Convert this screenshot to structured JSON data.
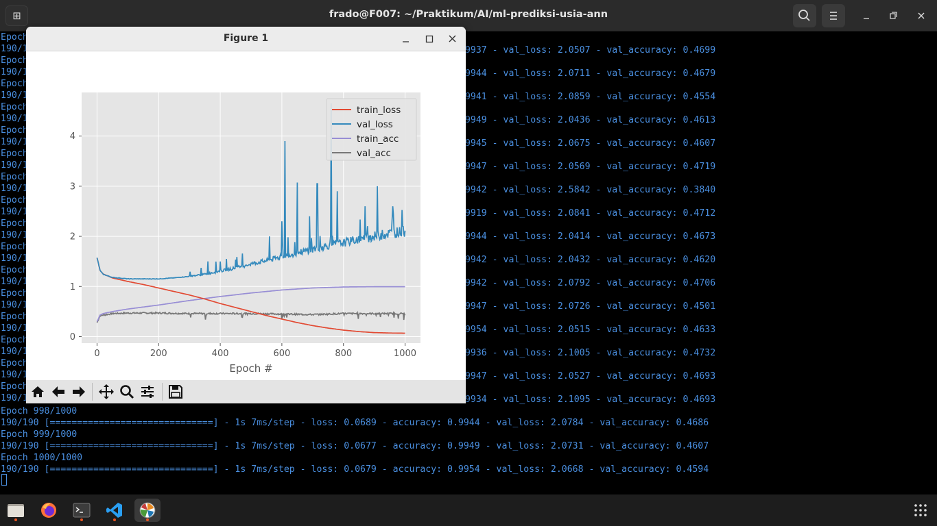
{
  "terminal": {
    "title": "frado@F007: ~/Praktikum/AI/ml-prediksi-usia-ann",
    "left_fragments": [
      "Epoch",
      "190/1",
      "Epoch",
      "190/1",
      "Epoch",
      "190/1",
      "Epoch",
      "190/1",
      "Epoch",
      "190/1",
      "Epoch",
      "190/1",
      "Epoch",
      "190/1",
      "Epoch",
      "190/1",
      "Epoch",
      "190/1",
      "Epoch",
      "190/1",
      "Epoch",
      "190/1",
      "Epoch",
      "190/1",
      "Epoch",
      "190/1",
      "Epoch",
      "190/1",
      "Epoch",
      "190/1",
      "Epoch",
      "190/1"
    ],
    "right_fragments": [
      ".9937 - val_loss: 2.0507 - val_accuracy: 0.4699",
      ".9944 - val_loss: 2.0711 - val_accuracy: 0.4679",
      ".9941 - val_loss: 2.0859 - val_accuracy: 0.4554",
      ".9949 - val_loss: 2.0436 - val_accuracy: 0.4613",
      ".9945 - val_loss: 2.0675 - val_accuracy: 0.4607",
      ".9947 - val_loss: 2.0569 - val_accuracy: 0.4719",
      ".9942 - val_loss: 2.5842 - val_accuracy: 0.3840",
      ".9919 - val_loss: 2.0841 - val_accuracy: 0.4712",
      ".9944 - val_loss: 2.0414 - val_accuracy: 0.4673",
      ".9942 - val_loss: 2.0432 - val_accuracy: 0.4620",
      ".9942 - val_loss: 2.0792 - val_accuracy: 0.4706",
      ".9947 - val_loss: 2.0726 - val_accuracy: 0.4501",
      ".9954 - val_loss: 2.0515 - val_accuracy: 0.4633",
      ".9936 - val_loss: 2.1005 - val_accuracy: 0.4732",
      ".9947 - val_loss: 2.0527 - val_accuracy: 0.4693",
      ".9934 - val_loss: 2.1095 - val_accuracy: 0.4693"
    ],
    "full_lines": [
      "Epoch 998/1000",
      "190/190 [==============================] - 1s 7ms/step - loss: 0.0689 - accuracy: 0.9944 - val_loss: 2.0784 - val_accuracy: 0.4686",
      "Epoch 999/1000",
      "190/190 [==============================] - 1s 7ms/step - loss: 0.0677 - accuracy: 0.9949 - val_loss: 2.0731 - val_accuracy: 0.4607",
      "Epoch 1000/1000",
      "190/190 [==============================] - 1s 7ms/step - loss: 0.0679 - accuracy: 0.9954 - val_loss: 2.0668 - val_accuracy: 0.4594"
    ]
  },
  "figure": {
    "title": "Figure 1"
  },
  "chart_data": {
    "type": "line",
    "title": "",
    "xlabel": "Epoch #",
    "ylabel": "",
    "xlim": [
      -50,
      1050
    ],
    "ylim": [
      -0.13,
      4.87
    ],
    "xticks": [
      0,
      200,
      400,
      600,
      800,
      1000
    ],
    "yticks": [
      0,
      1,
      2,
      3,
      4
    ],
    "grid": true,
    "legend_position": "top-right",
    "series": [
      {
        "name": "train_loss",
        "color": "#e24a33",
        "x": [
          0,
          10,
          20,
          50,
          100,
          150,
          200,
          250,
          300,
          350,
          400,
          450,
          500,
          550,
          600,
          650,
          700,
          750,
          800,
          850,
          900,
          950,
          1000
        ],
        "y": [
          1.57,
          1.32,
          1.25,
          1.17,
          1.1,
          1.04,
          0.97,
          0.9,
          0.83,
          0.75,
          0.66,
          0.58,
          0.5,
          0.42,
          0.35,
          0.28,
          0.22,
          0.17,
          0.13,
          0.1,
          0.08,
          0.072,
          0.068
        ]
      },
      {
        "name": "val_loss",
        "color": "#348abd",
        "x": [
          0,
          10,
          20,
          50,
          100,
          150,
          200,
          250,
          300,
          350,
          400,
          450,
          500,
          550,
          600,
          650,
          700,
          750,
          800,
          850,
          900,
          950,
          1000
        ],
        "y": [
          1.57,
          1.32,
          1.24,
          1.18,
          1.15,
          1.15,
          1.15,
          1.17,
          1.2,
          1.24,
          1.3,
          1.36,
          1.44,
          1.5,
          1.58,
          1.65,
          1.72,
          1.79,
          1.85,
          1.91,
          1.97,
          2.03,
          2.07
        ],
        "spikes": [
          [
            360,
            1.5
          ],
          [
            420,
            1.55
          ],
          [
            560,
            2.0
          ],
          [
            600,
            2.3
          ],
          [
            610,
            3.9
          ],
          [
            650,
            2.7
          ],
          [
            690,
            2.4
          ],
          [
            715,
            3.05
          ],
          [
            760,
            4.65
          ],
          [
            780,
            2.9
          ],
          [
            870,
            2.6
          ],
          [
            910,
            3.0
          ],
          [
            960,
            2.6
          ]
        ]
      },
      {
        "name": "train_acc",
        "color": "#988ed5",
        "x": [
          0,
          10,
          20,
          50,
          100,
          200,
          300,
          400,
          500,
          600,
          700,
          800,
          900,
          1000
        ],
        "y": [
          0.3,
          0.43,
          0.46,
          0.5,
          0.55,
          0.63,
          0.72,
          0.8,
          0.87,
          0.93,
          0.97,
          0.99,
          0.995,
          0.995
        ]
      },
      {
        "name": "val_acc",
        "color": "#777777",
        "x": [
          0,
          10,
          50,
          100,
          200,
          300,
          400,
          500,
          600,
          700,
          800,
          900,
          1000
        ],
        "y": [
          0.28,
          0.42,
          0.46,
          0.47,
          0.47,
          0.46,
          0.46,
          0.46,
          0.45,
          0.44,
          0.46,
          0.46,
          0.46
        ]
      }
    ]
  },
  "toolbar": {
    "home": "home-icon",
    "back": "back-arrow-icon",
    "forward": "forward-arrow-icon",
    "pan": "pan-icon",
    "zoom": "zoom-icon",
    "configure": "subplots-icon",
    "save": "save-icon"
  },
  "taskbar": {
    "apps": [
      "files",
      "firefox",
      "terminal",
      "vscode",
      "matplotlib-figure"
    ]
  }
}
